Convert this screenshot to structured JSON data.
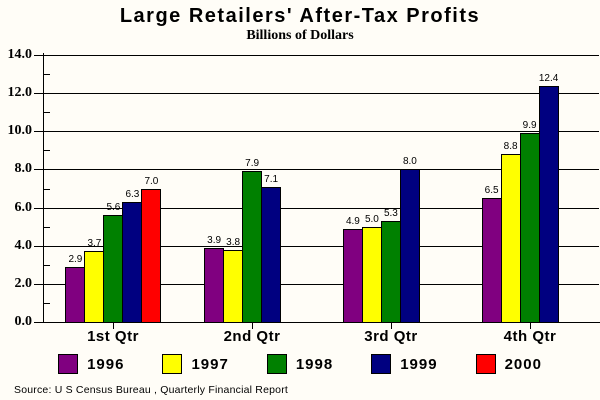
{
  "chart_data": {
    "type": "bar",
    "title": "Large Retailers' After-Tax Profits",
    "subtitle": "Billions of Dollars",
    "source": "Source: U S Census Bureau , Quarterly Financial Report",
    "categories": [
      "1st Qtr",
      "2nd Qtr",
      "3rd Qtr",
      "4th Qtr"
    ],
    "series": [
      {
        "name": "1996",
        "color": "#800080",
        "values": [
          2.9,
          3.9,
          4.9,
          6.5
        ]
      },
      {
        "name": "1997",
        "color": "#FFFF00",
        "values": [
          3.7,
          3.8,
          5.0,
          8.8
        ]
      },
      {
        "name": "1998",
        "color": "#008000",
        "values": [
          5.6,
          7.9,
          5.3,
          9.9
        ]
      },
      {
        "name": "1999",
        "color": "#000080",
        "values": [
          6.3,
          7.1,
          8.0,
          12.4
        ]
      },
      {
        "name": "2000",
        "color": "#FF0000",
        "values": [
          7.0,
          null,
          null,
          null
        ]
      }
    ],
    "ylim": [
      0,
      14
    ],
    "ytick_step": 2,
    "yminor_step": 1,
    "ytick_decimals": 1,
    "value_label_decimals": 1,
    "grid": true,
    "legend_position": "bottom",
    "value_labels": true,
    "background": "#FFFDF7",
    "axis_color": "#000000",
    "xlabel": "",
    "ylabel": "Billions of Dollars"
  }
}
